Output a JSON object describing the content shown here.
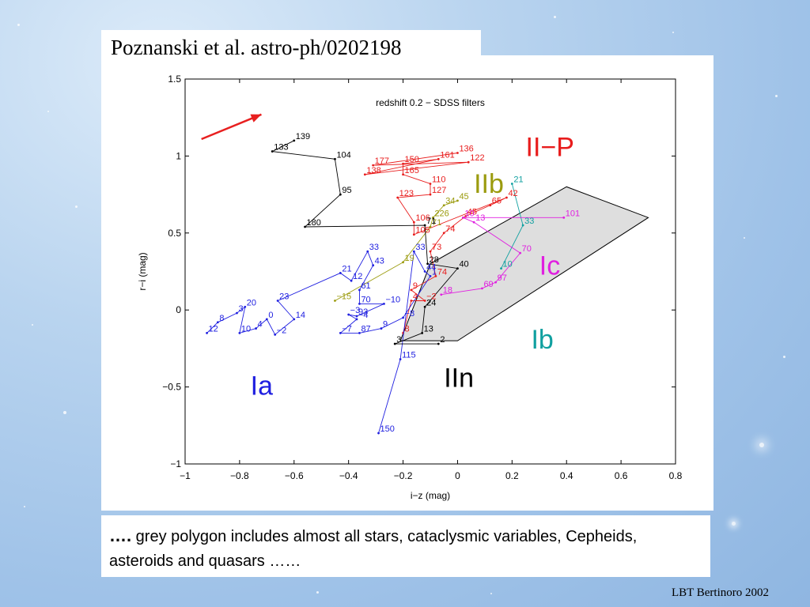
{
  "slide": {
    "title": "Poznanski et al. astro-ph/0202198",
    "caption_dots": "….",
    "caption_text": " grey polygon includes almost all stars, cataclysmic variables, Cepheids, asteroids and quasars ……",
    "footer": "LBT Bertinoro 2002"
  },
  "chart_data": {
    "type": "line",
    "title": "redshift 0.2 − SDSS filters",
    "xlabel": "i−z (mag)",
    "ylabel": "r−i (mag)",
    "xlim": [
      -1,
      0.8
    ],
    "ylim": [
      -1,
      1.5
    ],
    "xticks": [
      -1,
      -0.8,
      -0.6,
      -0.4,
      -0.2,
      0,
      0.2,
      0.4,
      0.6,
      0.8
    ],
    "yticks": [
      -1,
      -0.5,
      0,
      0.5,
      1,
      1.5
    ],
    "xtick_labels": [
      "−1",
      "−0.8",
      "−0.6",
      "−0.4",
      "−0.2",
      "0",
      "0.2",
      "0.4",
      "0.6",
      "0.8"
    ],
    "ytick_labels": [
      "−1",
      "−0.5",
      "0",
      "0.5",
      "1",
      "1.5"
    ],
    "grid": false,
    "polygon": {
      "fill": "#dedede",
      "points": [
        [
          -0.21,
          -0.2
        ],
        [
          0,
          -0.2
        ],
        [
          0.7,
          0.6
        ],
        [
          0.4,
          0.8
        ],
        [
          -0.1,
          0.3
        ]
      ]
    },
    "arrow": {
      "color": "#e82020",
      "from": [
        -0.94,
        1.11
      ],
      "to": [
        -0.72,
        1.27
      ]
    },
    "region_labels": [
      {
        "text": "II−P",
        "x": 0.25,
        "y": 1.0,
        "color": "#e81c1c"
      },
      {
        "text": "IIb",
        "x": 0.06,
        "y": 0.76,
        "color": "#9b9b0e"
      },
      {
        "text": "Ic",
        "x": 0.3,
        "y": 0.23,
        "color": "#e020e0"
      },
      {
        "text": "Ib",
        "x": 0.27,
        "y": -0.25,
        "color": "#10a0a0"
      },
      {
        "text": "IIn",
        "x": -0.05,
        "y": -0.5,
        "color": "#000000"
      },
      {
        "text": "Ia",
        "x": -0.76,
        "y": -0.55,
        "color": "#2020e0"
      }
    ],
    "series": [
      {
        "name": "II-P",
        "color": "#e81c1c",
        "points": [
          {
            "x": 0.0,
            "y": 1.02,
            "label": "136"
          },
          {
            "x": -0.31,
            "y": 0.94,
            "label": "177"
          },
          {
            "x": 0.04,
            "y": 0.96,
            "label": "122"
          },
          {
            "x": -0.34,
            "y": 0.88,
            "label": "138"
          },
          {
            "x": -0.07,
            "y": 0.98,
            "label": "161"
          },
          {
            "x": -0.2,
            "y": 0.95,
            "label": "150"
          },
          {
            "x": -0.2,
            "y": 0.88,
            "label": "165"
          },
          {
            "x": -0.1,
            "y": 0.82,
            "label": "110"
          },
          {
            "x": -0.1,
            "y": 0.75,
            "label": "127"
          },
          {
            "x": -0.22,
            "y": 0.73,
            "label": "123"
          },
          {
            "x": -0.16,
            "y": 0.57,
            "label": "106"
          },
          {
            "x": -0.16,
            "y": 0.49,
            "label": "105"
          },
          {
            "x": 0.18,
            "y": 0.73,
            "label": "42"
          },
          {
            "x": 0.12,
            "y": 0.68,
            "label": "65"
          },
          {
            "x": 0.03,
            "y": 0.61,
            "label": "45"
          },
          {
            "x": -0.05,
            "y": 0.5,
            "label": "74"
          },
          {
            "x": -0.1,
            "y": 0.38,
            "label": "73"
          },
          {
            "x": -0.08,
            "y": 0.22,
            "label": "74"
          },
          {
            "x": -0.17,
            "y": 0.13,
            "label": "9"
          },
          {
            "x": -0.12,
            "y": 0.06,
            "label": "−2"
          },
          {
            "x": -0.17,
            "y": 0.06,
            "label": "4"
          },
          {
            "x": -0.2,
            "y": -0.15,
            "label": "8"
          }
        ]
      },
      {
        "name": "IIb",
        "color": "#9b9b0e",
        "points": [
          {
            "x": 0.0,
            "y": 0.71,
            "label": "45"
          },
          {
            "x": -0.05,
            "y": 0.68,
            "label": "34"
          },
          {
            "x": -0.09,
            "y": 0.6,
            "label": "226"
          },
          {
            "x": -0.1,
            "y": 0.54,
            "label": "71"
          },
          {
            "x": -0.2,
            "y": 0.31,
            "label": "19"
          },
          {
            "x": -0.45,
            "y": 0.06,
            "label": "−15"
          }
        ]
      },
      {
        "name": "Ib",
        "color": "#10a0a0",
        "points": [
          {
            "x": 0.2,
            "y": 0.82,
            "label": "21"
          },
          {
            "x": 0.24,
            "y": 0.55,
            "label": "33"
          },
          {
            "x": 0.16,
            "y": 0.27,
            "label": "10"
          }
        ]
      },
      {
        "name": "Ic",
        "color": "#e020e0",
        "points": [
          {
            "x": 0.39,
            "y": 0.6,
            "label": "101"
          },
          {
            "x": 0.02,
            "y": 0.6,
            "label": "10"
          },
          {
            "x": 0.06,
            "y": 0.57,
            "label": "13"
          },
          {
            "x": 0.23,
            "y": 0.37,
            "label": "70"
          },
          {
            "x": 0.14,
            "y": 0.18,
            "label": "97"
          },
          {
            "x": 0.09,
            "y": 0.14,
            "label": "69"
          },
          {
            "x": -0.06,
            "y": 0.1,
            "label": "18"
          }
        ]
      },
      {
        "name": "Ia",
        "color": "#2020e0",
        "points": [
          {
            "x": -0.92,
            "y": -0.15,
            "label": "12"
          },
          {
            "x": -0.88,
            "y": -0.08,
            "label": "8"
          },
          {
            "x": -0.81,
            "y": -0.02,
            "label": "3"
          },
          {
            "x": -0.78,
            "y": 0.02,
            "label": "20"
          },
          {
            "x": -0.8,
            "y": -0.15,
            "label": "10"
          },
          {
            "x": -0.74,
            "y": -0.12,
            "label": "4"
          },
          {
            "x": -0.7,
            "y": -0.06,
            "label": "0"
          },
          {
            "x": -0.67,
            "y": -0.16,
            "label": "−2"
          },
          {
            "x": -0.6,
            "y": -0.06,
            "label": "14"
          },
          {
            "x": -0.66,
            "y": 0.06,
            "label": "23"
          },
          {
            "x": -0.43,
            "y": 0.24,
            "label": "21"
          },
          {
            "x": -0.39,
            "y": 0.19,
            "label": "12"
          },
          {
            "x": -0.33,
            "y": 0.38,
            "label": "33"
          },
          {
            "x": -0.31,
            "y": 0.29,
            "label": "43"
          },
          {
            "x": -0.36,
            "y": 0.13,
            "label": "61"
          },
          {
            "x": -0.36,
            "y": 0.04,
            "label": "70"
          },
          {
            "x": -0.27,
            "y": 0.04,
            "label": "−10"
          },
          {
            "x": -0.37,
            "y": -0.04,
            "label": "93"
          },
          {
            "x": -0.4,
            "y": -0.03,
            "label": "−3"
          },
          {
            "x": -0.37,
            "y": -0.06,
            "label": "−4"
          },
          {
            "x": -0.43,
            "y": -0.15,
            "label": "−7"
          },
          {
            "x": -0.36,
            "y": -0.15,
            "label": "87"
          },
          {
            "x": -0.28,
            "y": -0.12,
            "label": "9"
          },
          {
            "x": -0.2,
            "y": -0.05,
            "label": "−8"
          },
          {
            "x": -0.1,
            "y": 0.22,
            "label": "1"
          },
          {
            "x": -0.12,
            "y": 0.25,
            "label": "44"
          },
          {
            "x": -0.16,
            "y": 0.38,
            "label": "33"
          },
          {
            "x": -0.21,
            "y": -0.32,
            "label": "115"
          },
          {
            "x": -0.29,
            "y": -0.8,
            "label": "150"
          }
        ]
      },
      {
        "name": "IIn",
        "color": "#000000",
        "points": [
          {
            "x": -0.6,
            "y": 1.1,
            "label": "139"
          },
          {
            "x": -0.68,
            "y": 1.03,
            "label": "133"
          },
          {
            "x": -0.45,
            "y": 0.98,
            "label": "104"
          },
          {
            "x": -0.43,
            "y": 0.75,
            "label": "95"
          },
          {
            "x": -0.56,
            "y": 0.54,
            "label": "180"
          },
          {
            "x": -0.12,
            "y": 0.55,
            "label": "71"
          },
          {
            "x": -0.11,
            "y": 0.3,
            "label": "28"
          },
          {
            "x": 0.0,
            "y": 0.27,
            "label": "40"
          },
          {
            "x": -0.12,
            "y": 0.02,
            "label": "24"
          },
          {
            "x": -0.13,
            "y": -0.15,
            "label": "13"
          },
          {
            "x": -0.23,
            "y": -0.22,
            "label": "3"
          },
          {
            "x": -0.07,
            "y": -0.22,
            "label": "2"
          }
        ]
      }
    ]
  }
}
